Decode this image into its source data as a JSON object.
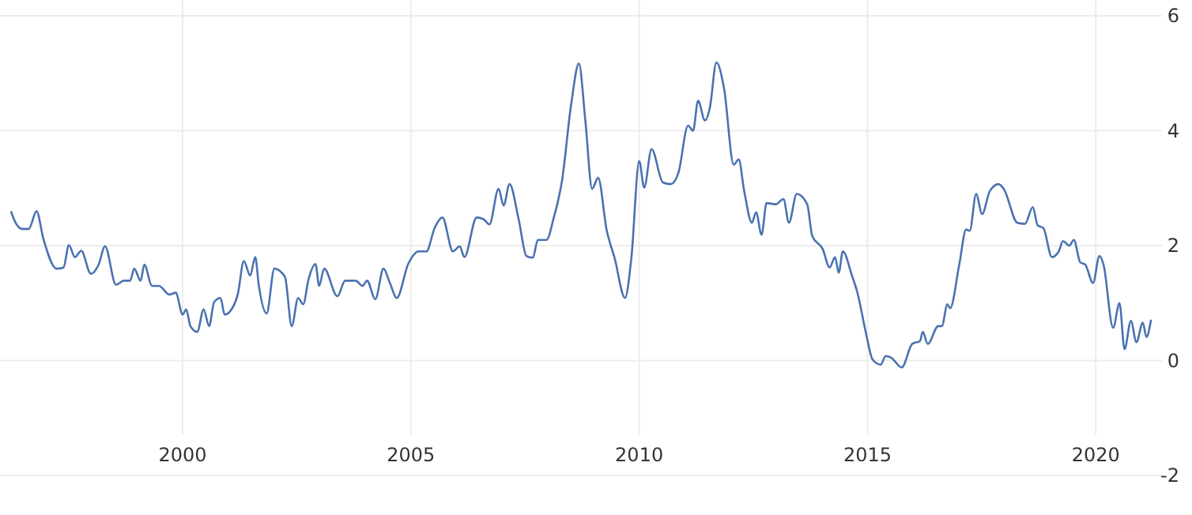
{
  "chart_data": {
    "type": "line",
    "x": [
      1996.24,
      1996.34,
      1996.49,
      1996.63,
      1996.8,
      1996.95,
      1997.24,
      1997.39,
      1997.51,
      1997.64,
      1997.78,
      1997.99,
      1998.16,
      1998.3,
      1998.54,
      1998.71,
      1998.85,
      1998.94,
      1999.08,
      1999.16,
      1999.33,
      1999.48,
      1999.71,
      1999.85,
      2000.0,
      2000.08,
      2000.17,
      2000.32,
      2000.46,
      2000.58,
      2000.69,
      2000.83,
      2000.92,
      2001.07,
      2001.21,
      2001.34,
      2001.48,
      2001.59,
      2001.67,
      2001.84,
      2002.01,
      2002.24,
      2002.39,
      2002.53,
      2002.64,
      2002.76,
      2002.91,
      2002.99,
      2003.1,
      2003.39,
      2003.56,
      2003.79,
      2003.94,
      2004.04,
      2004.22,
      2004.4,
      2004.54,
      2004.69,
      2004.94,
      2005.17,
      2005.34,
      2005.52,
      2005.69,
      2005.92,
      2006.07,
      2006.17,
      2006.44,
      2006.59,
      2006.72,
      2006.92,
      2007.03,
      2007.16,
      2007.36,
      2007.53,
      2007.67,
      2007.78,
      2007.97,
      2008.13,
      2008.31,
      2008.51,
      2008.68,
      2008.82,
      2008.97,
      2009.1,
      2009.29,
      2009.46,
      2009.69,
      2009.83,
      2010.0,
      2010.11,
      2010.27,
      2010.52,
      2010.69,
      2010.86,
      2011.07,
      2011.18,
      2011.29,
      2011.44,
      2011.55,
      2011.69,
      2011.86,
      2012.07,
      2012.18,
      2012.3,
      2012.47,
      2012.56,
      2012.68,
      2012.79,
      2012.99,
      2013.16,
      2013.28,
      2013.45,
      2013.68,
      2013.79,
      2014.02,
      2014.17,
      2014.29,
      2014.37,
      2014.46,
      2014.66,
      2014.77,
      2014.98,
      2015.11,
      2015.29,
      2015.4,
      2015.52,
      2015.75,
      2015.98,
      2016.15,
      2016.21,
      2016.32,
      2016.55,
      2016.63,
      2016.75,
      2016.81,
      2017.01,
      2017.16,
      2017.24,
      2017.38,
      2017.51,
      2017.68,
      2017.87,
      2017.99,
      2018.28,
      2018.45,
      2018.62,
      2018.73,
      2018.85,
      2019.04,
      2019.19,
      2019.28,
      2019.42,
      2019.52,
      2019.66,
      2019.77,
      2019.94,
      2020.08,
      2020.17,
      2020.38,
      2020.52,
      2020.63,
      2020.77,
      2020.89,
      2021.03,
      2021.11,
      2021.21
    ],
    "series": [
      {
        "color": "#4a72b0",
        "values": [
          2.6,
          2.4,
          2.29,
          2.29,
          2.6,
          2.12,
          1.6,
          1.62,
          2.01,
          1.8,
          1.91,
          1.51,
          1.67,
          1.99,
          1.32,
          1.39,
          1.39,
          1.6,
          1.39,
          1.67,
          1.3,
          1.3,
          1.15,
          1.18,
          0.8,
          0.89,
          0.6,
          0.5,
          0.89,
          0.6,
          1.02,
          1.09,
          0.8,
          0.89,
          1.16,
          1.73,
          1.48,
          1.8,
          1.3,
          0.82,
          1.6,
          1.46,
          0.6,
          1.09,
          0.98,
          1.42,
          1.68,
          1.3,
          1.6,
          1.12,
          1.39,
          1.39,
          1.3,
          1.39,
          1.07,
          1.6,
          1.35,
          1.09,
          1.68,
          1.9,
          1.9,
          2.31,
          2.49,
          1.9,
          1.99,
          1.8,
          2.49,
          2.46,
          2.37,
          2.99,
          2.7,
          3.07,
          2.46,
          1.82,
          1.79,
          2.1,
          2.1,
          2.49,
          3.13,
          4.46,
          5.17,
          4.18,
          2.99,
          3.18,
          2.26,
          1.79,
          1.09,
          1.8,
          3.47,
          3.01,
          3.68,
          3.1,
          3.07,
          3.27,
          4.09,
          4.0,
          4.52,
          4.18,
          4.41,
          5.19,
          4.73,
          3.41,
          3.5,
          2.95,
          2.4,
          2.58,
          2.19,
          2.74,
          2.72,
          2.81,
          2.4,
          2.9,
          2.72,
          2.17,
          1.94,
          1.62,
          1.8,
          1.53,
          1.9,
          1.48,
          1.21,
          0.43,
          0.02,
          -0.07,
          0.08,
          0.05,
          -0.12,
          0.29,
          0.34,
          0.5,
          0.29,
          0.6,
          0.6,
          0.98,
          0.91,
          1.67,
          2.28,
          2.26,
          2.9,
          2.55,
          2.95,
          3.07,
          2.98,
          2.4,
          2.38,
          2.67,
          2.35,
          2.31,
          1.8,
          1.9,
          2.08,
          2.0,
          2.1,
          1.71,
          1.67,
          1.35,
          1.82,
          1.67,
          0.57,
          1.0,
          0.2,
          0.69,
          0.32,
          0.66,
          0.41,
          0.71
        ]
      }
    ],
    "xlim": [
      1996,
      2021.45
    ],
    "xticks": [
      2000,
      2005,
      2010,
      2015,
      2020
    ],
    "ylim": [
      -2,
      6
    ],
    "yticks": [
      -2,
      0,
      2,
      4,
      6
    ],
    "grid": true,
    "line_style": "solid"
  }
}
